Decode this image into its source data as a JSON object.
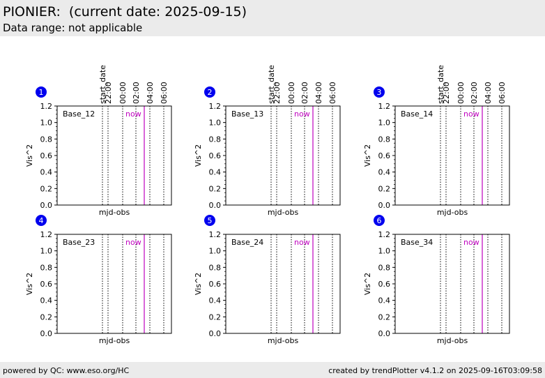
{
  "header": {
    "title": "PIONIER:  (current date: 2025-09-15)",
    "subtitle": "Data range: not applicable"
  },
  "footer": {
    "left": "powered by QC: www.eso.org/HC",
    "right": "created by trendPlotter v4.1.2 on 2025-09-16T03:09:58"
  },
  "colors": {
    "now_line": "#bf00bf",
    "badge": "#0000ee",
    "header_bg": "#ebebeb"
  },
  "chart_data": [
    {
      "number": "1",
      "type": "line",
      "label": "Base_12",
      "xlabel": "mjd-obs",
      "ylabel": "Vis^2",
      "ylim": [
        0,
        1.2
      ],
      "yticks": [
        "0.0",
        "0.2",
        "0.4",
        "0.6",
        "0.8",
        "1.0",
        "1.2"
      ],
      "now_label": "now",
      "time_ticks": [
        "start_date",
        "22:00",
        "00:00",
        "02:00",
        "04:00",
        "06:00"
      ],
      "show_time_ticks": true,
      "series": []
    },
    {
      "number": "2",
      "type": "line",
      "label": "Base_13",
      "xlabel": "mjd-obs",
      "ylabel": "Vis^2",
      "ylim": [
        0,
        1.2
      ],
      "yticks": [
        "0.0",
        "0.2",
        "0.4",
        "0.6",
        "0.8",
        "1.0",
        "1.2"
      ],
      "now_label": "now",
      "time_ticks": [
        "start_date",
        "22:00",
        "00:00",
        "02:00",
        "04:00",
        "06:00"
      ],
      "show_time_ticks": true,
      "series": []
    },
    {
      "number": "3",
      "type": "line",
      "label": "Base_14",
      "xlabel": "mjd-obs",
      "ylabel": "Vis^2",
      "ylim": [
        0,
        1.2
      ],
      "yticks": [
        "0.0",
        "0.2",
        "0.4",
        "0.6",
        "0.8",
        "1.0",
        "1.2"
      ],
      "now_label": "now",
      "time_ticks": [
        "start_date",
        "22:00",
        "00:00",
        "02:00",
        "04:00",
        "06:00"
      ],
      "show_time_ticks": true,
      "series": []
    },
    {
      "number": "4",
      "type": "line",
      "label": "Base_23",
      "xlabel": "mjd-obs",
      "ylabel": "Vis^2",
      "ylim": [
        0,
        1.2
      ],
      "yticks": [
        "0.0",
        "0.2",
        "0.4",
        "0.6",
        "0.8",
        "1.0",
        "1.2"
      ],
      "now_label": "now",
      "time_ticks": [],
      "show_time_ticks": false,
      "series": []
    },
    {
      "number": "5",
      "type": "line",
      "label": "Base_24",
      "xlabel": "mjd-obs",
      "ylabel": "Vis^2",
      "ylim": [
        0,
        1.2
      ],
      "yticks": [
        "0.0",
        "0.2",
        "0.4",
        "0.6",
        "0.8",
        "1.0",
        "1.2"
      ],
      "now_label": "now",
      "time_ticks": [],
      "show_time_ticks": false,
      "series": []
    },
    {
      "number": "6",
      "type": "line",
      "label": "Base_34",
      "xlabel": "mjd-obs",
      "ylabel": "Vis^2",
      "ylim": [
        0,
        1.2
      ],
      "yticks": [
        "0.0",
        "0.2",
        "0.4",
        "0.6",
        "0.8",
        "1.0",
        "1.2"
      ],
      "now_label": "now",
      "time_ticks": [],
      "show_time_ticks": false,
      "series": []
    }
  ]
}
